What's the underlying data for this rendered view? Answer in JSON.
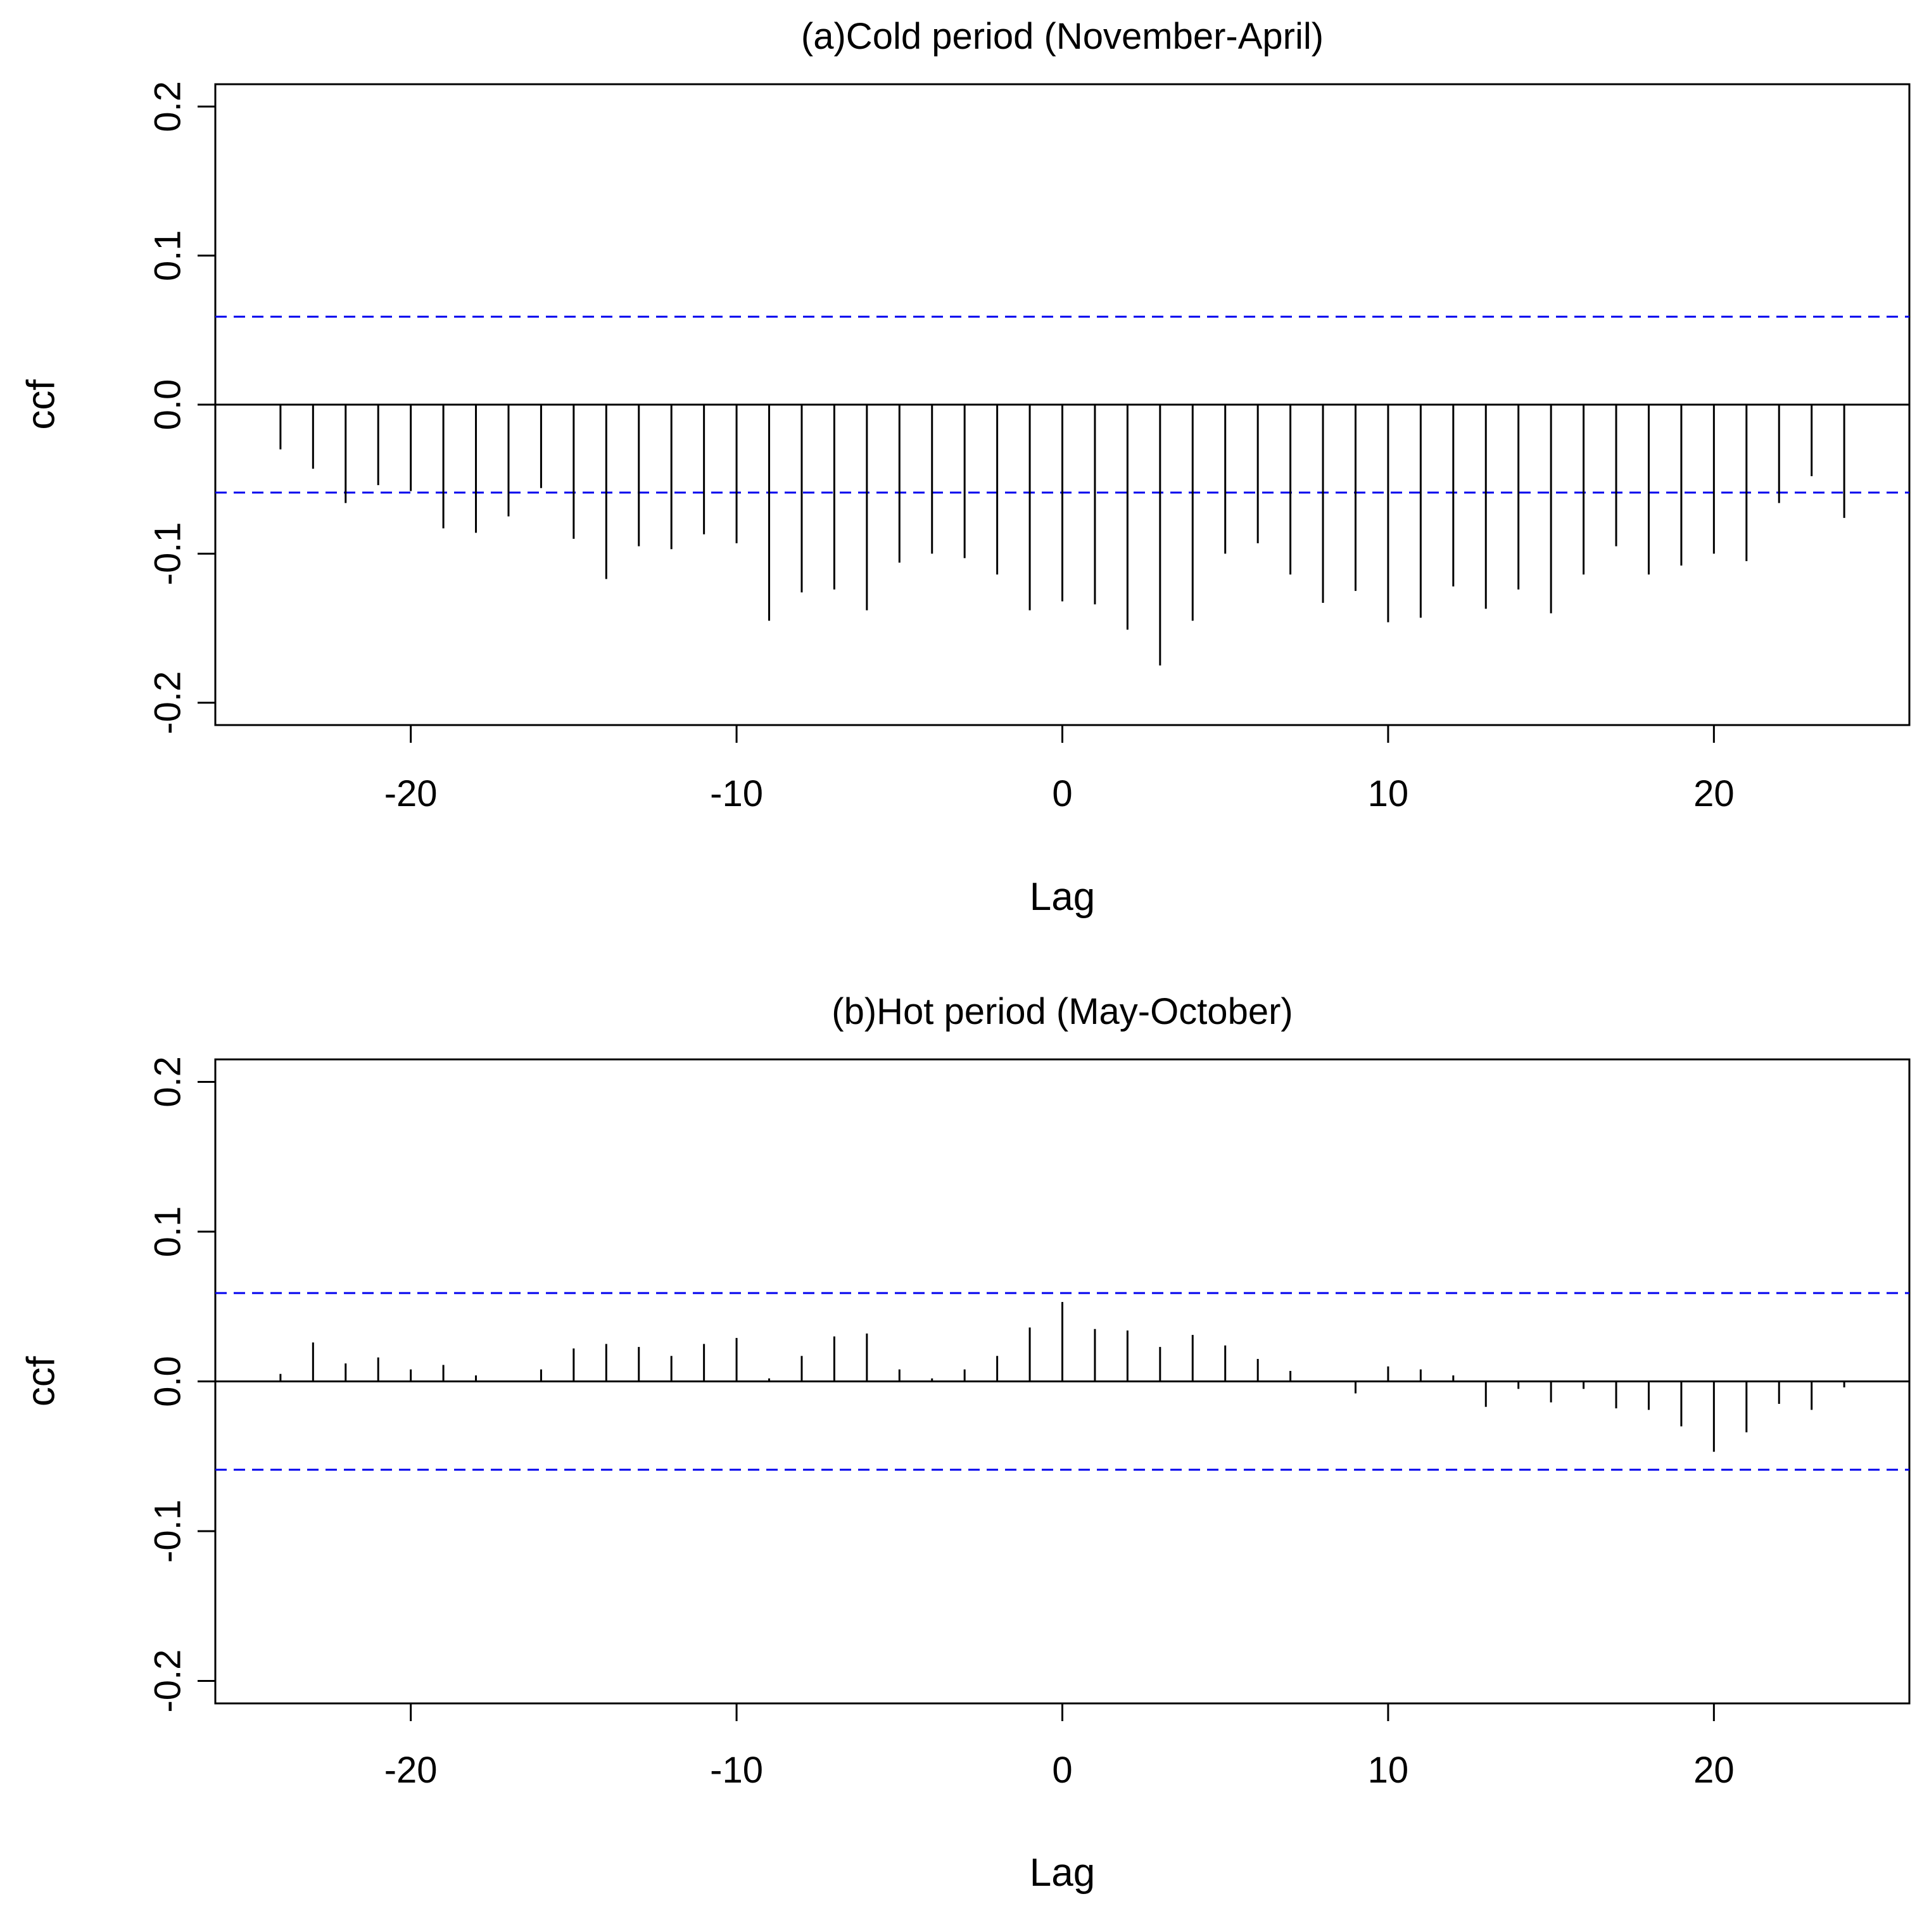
{
  "chart_data": [
    {
      "type": "bar",
      "title": "(a)Cold period (November-April)",
      "xlabel": "Lag",
      "ylabel": "ccf",
      "xlim": [
        -26,
        26
      ],
      "ylim": [
        -0.215,
        0.215
      ],
      "x_ticks": [
        -20,
        -10,
        0,
        10,
        20
      ],
      "x_tick_labels": [
        "-20",
        "-10",
        "0",
        "10",
        "20"
      ],
      "y_ticks": [
        -0.2,
        -0.1,
        0.0,
        0.1,
        0.2
      ],
      "y_tick_labels": [
        "-0.2",
        "-0.1",
        "0.0",
        "0.1",
        "0.2"
      ],
      "confidence_bound": 0.059,
      "lags": [
        -24,
        -23,
        -22,
        -21,
        -20,
        -19,
        -18,
        -17,
        -16,
        -15,
        -14,
        -13,
        -12,
        -11,
        -10,
        -9,
        -8,
        -7,
        -6,
        -5,
        -4,
        -3,
        -2,
        -1,
        0,
        1,
        2,
        3,
        4,
        5,
        6,
        7,
        8,
        9,
        10,
        11,
        12,
        13,
        14,
        15,
        16,
        17,
        18,
        19,
        20,
        21,
        22,
        23,
        24
      ],
      "values": [
        -0.03,
        -0.043,
        -0.066,
        -0.054,
        -0.058,
        -0.083,
        -0.086,
        -0.075,
        -0.056,
        -0.09,
        -0.117,
        -0.095,
        -0.097,
        -0.087,
        -0.093,
        -0.145,
        -0.126,
        -0.124,
        -0.138,
        -0.106,
        -0.1,
        -0.103,
        -0.114,
        -0.138,
        -0.132,
        -0.134,
        -0.151,
        -0.175,
        -0.145,
        -0.1,
        -0.093,
        -0.114,
        -0.133,
        -0.125,
        -0.146,
        -0.143,
        -0.122,
        -0.137,
        -0.124,
        -0.14,
        -0.114,
        -0.095,
        -0.114,
        -0.108,
        -0.1,
        -0.105,
        -0.066,
        -0.048,
        -0.076
      ],
      "grid": false
    },
    {
      "type": "bar",
      "title": "(b)Hot period (May-October)",
      "xlabel": "Lag",
      "ylabel": "ccf",
      "xlim": [
        -26,
        26
      ],
      "ylim": [
        -0.215,
        0.215
      ],
      "x_ticks": [
        -20,
        -10,
        0,
        10,
        20
      ],
      "x_tick_labels": [
        "-20",
        "-10",
        "0",
        "10",
        "20"
      ],
      "y_ticks": [
        -0.2,
        -0.1,
        0.0,
        0.1,
        0.2
      ],
      "y_tick_labels": [
        "-0.2",
        "-0.1",
        "0.0",
        "0.1",
        "0.2"
      ],
      "confidence_bound": 0.059,
      "lags": [
        -24,
        -23,
        -22,
        -21,
        -20,
        -19,
        -18,
        -17,
        -16,
        -15,
        -14,
        -13,
        -12,
        -11,
        -10,
        -9,
        -8,
        -7,
        -6,
        -5,
        -4,
        -3,
        -2,
        -1,
        0,
        1,
        2,
        3,
        4,
        5,
        6,
        7,
        8,
        9,
        10,
        11,
        12,
        13,
        14,
        15,
        16,
        17,
        18,
        19,
        20,
        21,
        22,
        23,
        24
      ],
      "values": [
        0.005,
        0.026,
        0.012,
        0.016,
        0.008,
        0.011,
        0.004,
        0.0,
        0.008,
        0.022,
        0.025,
        0.023,
        0.017,
        0.025,
        0.029,
        0.002,
        0.017,
        0.03,
        0.032,
        0.008,
        0.002,
        0.008,
        0.017,
        0.036,
        0.053,
        0.035,
        0.034,
        0.023,
        0.031,
        0.024,
        0.015,
        0.007,
        0.0,
        -0.008,
        0.01,
        0.008,
        0.004,
        -0.017,
        -0.005,
        -0.014,
        -0.005,
        -0.018,
        -0.019,
        -0.03,
        -0.047,
        -0.034,
        -0.015,
        -0.019,
        -0.004
      ],
      "grid": false
    }
  ]
}
